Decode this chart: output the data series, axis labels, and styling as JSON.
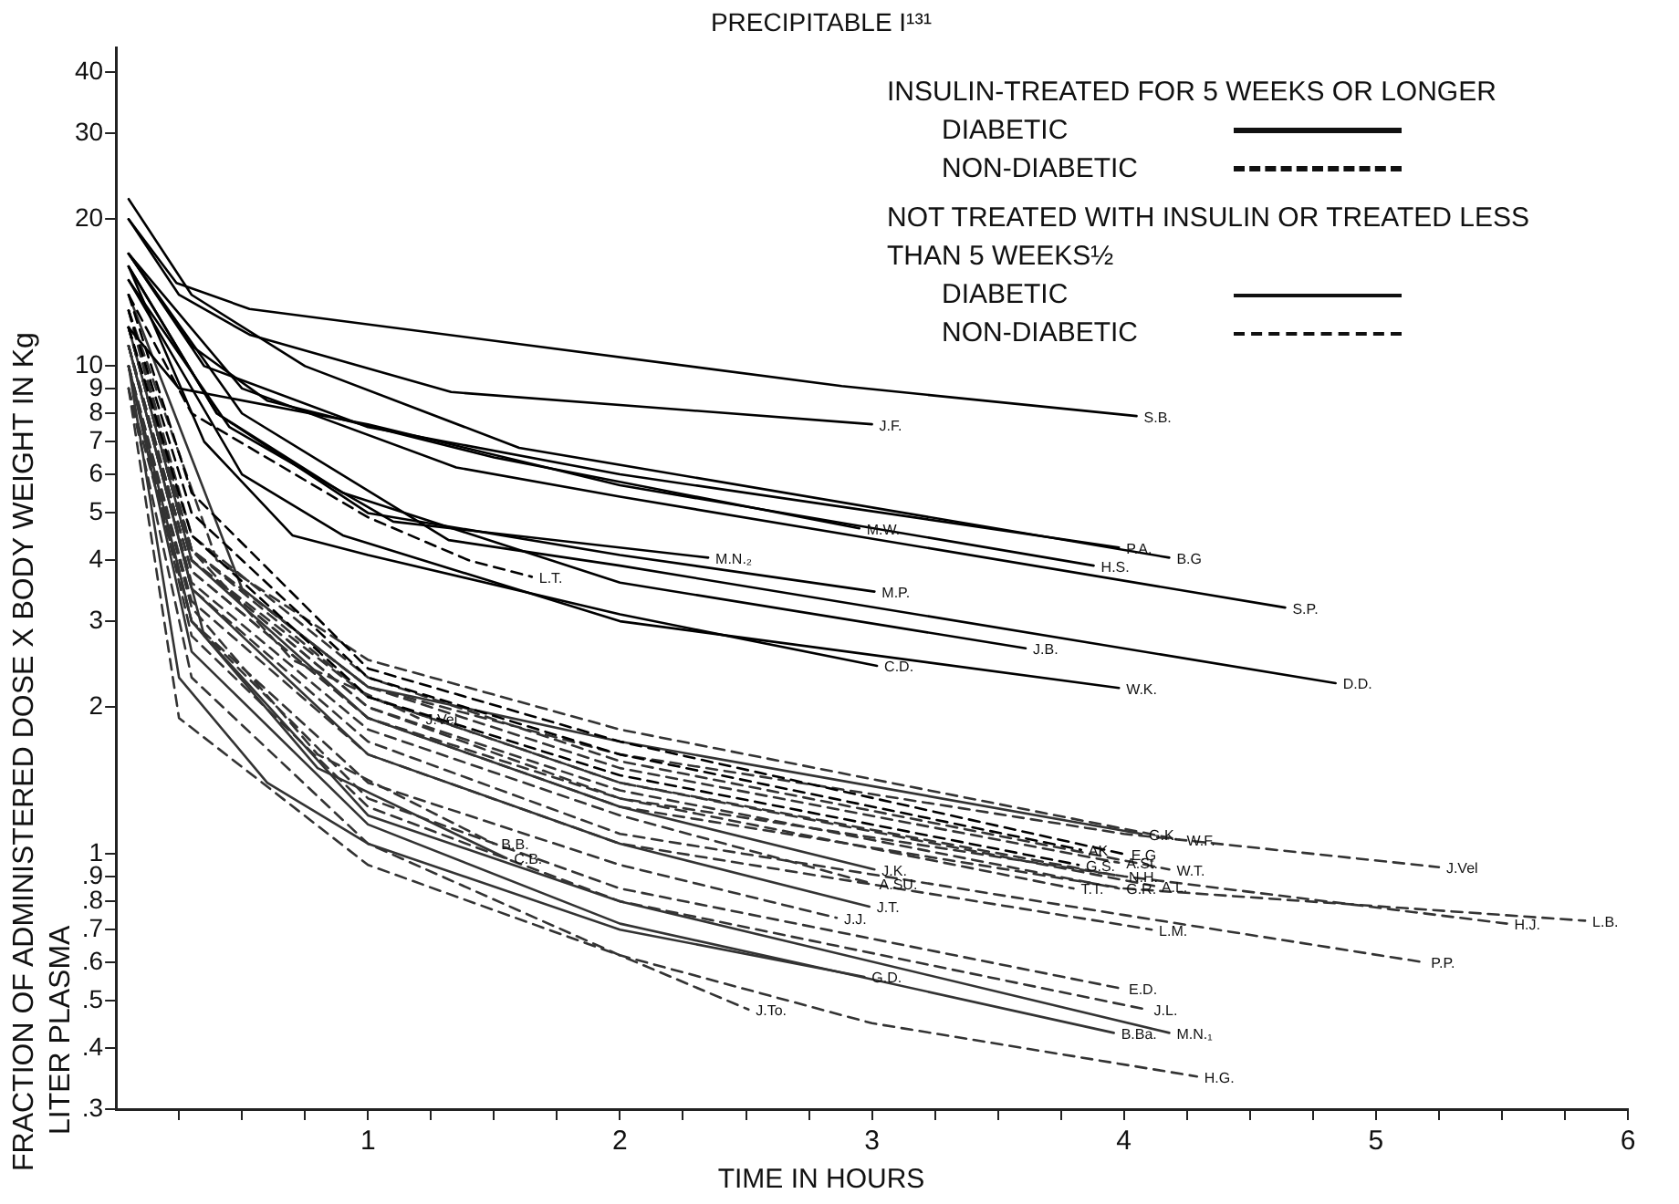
{
  "chart_data": {
    "type": "line",
    "title": "PRECIPITABLE I¹³¹",
    "xlabel": "TIME IN HOURS",
    "ylabel": "FRACTION OF ADMINISTERED DOSE X BODY WEIGHT IN Kg",
    "log": "y",
    "grid": false,
    "marker": "none",
    "xlim": [
      0,
      6
    ],
    "xticks": [
      {
        "value": 0.25,
        "label": null
      },
      {
        "value": 0.5,
        "label": null
      },
      {
        "value": 0.75,
        "label": null
      },
      1,
      {
        "value": 1.25,
        "label": null
      },
      {
        "value": 1.5,
        "label": null
      },
      {
        "value": 1.75,
        "label": null
      },
      2,
      {
        "value": 2.25,
        "label": null
      },
      {
        "value": 2.5,
        "label": null
      },
      {
        "value": 2.75,
        "label": null
      },
      3,
      {
        "value": 3.25,
        "label": null
      },
      {
        "value": 3.5,
        "label": null
      },
      {
        "value": 3.75,
        "label": null
      },
      4,
      {
        "value": 4.25,
        "label": null
      },
      {
        "value": 4.5,
        "label": null
      },
      {
        "value": 4.75,
        "label": null
      },
      5,
      {
        "value": 5.25,
        "label": null
      },
      {
        "value": 5.5,
        "label": null
      },
      {
        "value": 5.75,
        "label": null
      },
      6
    ],
    "ylim": [
      0.3,
      45
    ],
    "yticks": [
      {
        "value": 0.3,
        "label": ".3"
      },
      {
        "value": 0.4,
        "label": ".4"
      },
      {
        "value": 0.5,
        "label": ".5"
      },
      {
        "value": 0.6,
        "label": ".6"
      },
      {
        "value": 0.7,
        "label": ".7"
      },
      {
        "value": 0.8,
        "label": ".8"
      },
      {
        "value": 0.9,
        "label": ".9"
      },
      1,
      2,
      3,
      4,
      5,
      6,
      7,
      8,
      9,
      10,
      20,
      30,
      40
    ],
    "series": [
      {
        "name": "S.B.",
        "color": "#000000",
        "line_style": "solid",
        "x": [
          0.05,
          0.24,
          0.53,
          2.88,
          4.05
        ],
        "values": [
          20,
          14.8,
          13.1,
          9.1,
          7.9
        ]
      },
      {
        "name": "J.F.",
        "color": "#000000",
        "line_style": "solid",
        "x": [
          0.05,
          0.25,
          0.53,
          1.33,
          3.0
        ],
        "values": [
          20,
          14,
          11.6,
          8.85,
          7.6
        ]
      },
      {
        "name": "M.W.",
        "color": "#000000",
        "line_style": "solid",
        "x": [
          0.05,
          0.3,
          0.6,
          1.5,
          2.95
        ],
        "values": [
          17,
          11,
          8.5,
          6.5,
          4.65
        ]
      },
      {
        "name": "P.A.",
        "color": "#000000",
        "line_style": "solid",
        "x": [
          0.05,
          0.35,
          1.0,
          2.0,
          3.98
        ],
        "values": [
          17,
          10,
          7.5,
          6.0,
          4.25
        ]
      },
      {
        "name": "B.G",
        "color": "#000000",
        "line_style": "solid",
        "x": [
          0.05,
          0.3,
          0.75,
          1.6,
          4.18
        ],
        "values": [
          22,
          14,
          10,
          6.8,
          4.05
        ]
      },
      {
        "name": "H.S.",
        "color": "#000000",
        "line_style": "solid",
        "x": [
          0.05,
          0.25,
          1.0,
          2.0,
          3.88
        ],
        "values": [
          12,
          9,
          7.6,
          5.7,
          3.9
        ]
      },
      {
        "name": "S.P.",
        "color": "#000000",
        "line_style": "solid",
        "x": [
          0.05,
          0.5,
          1.35,
          2.0,
          4.64
        ],
        "values": [
          17,
          9,
          6.2,
          5.4,
          3.2
        ]
      },
      {
        "name": "M.N.₂",
        "color": "#000000",
        "line_style": "solid",
        "x": [
          0.05,
          0.45,
          1.1,
          2.35
        ],
        "values": [
          15,
          7.5,
          4.8,
          4.05
        ]
      },
      {
        "name": "M.P.",
        "color": "#000000",
        "line_style": "solid",
        "x": [
          0.05,
          0.4,
          1.0,
          2.0,
          3.01
        ],
        "values": [
          16,
          8,
          5,
          4.1,
          3.45
        ]
      },
      {
        "name": "C.D.",
        "color": "#000000",
        "line_style": "solid",
        "x": [
          0.05,
          0.35,
          0.7,
          1.0,
          2.0,
          3.02
        ],
        "values": [
          16,
          7,
          4.5,
          4.1,
          3.1,
          2.43
        ]
      },
      {
        "name": "W.K.",
        "color": "#000000",
        "line_style": "solid",
        "x": [
          0.05,
          0.5,
          0.9,
          2.0,
          3.98
        ],
        "values": [
          15,
          6,
          4.5,
          3.0,
          2.19
        ]
      },
      {
        "name": "J.B.",
        "color": "#000000",
        "line_style": "solid",
        "x": [
          0.05,
          0.4,
          0.9,
          2.0,
          3.61
        ],
        "values": [
          16,
          8,
          5.5,
          3.6,
          2.64
        ]
      },
      {
        "name": "D.D.",
        "color": "#000000",
        "line_style": "solid",
        "x": [
          0.05,
          0.5,
          1.32,
          2.0,
          4.84
        ],
        "values": [
          17,
          8,
          4.4,
          3.9,
          2.24
        ]
      },
      {
        "name": "L.T.",
        "color": "#000000",
        "line_style": "dashed",
        "x": [
          0.05,
          0.3,
          1.0,
          1.4,
          1.65
        ],
        "values": [
          14,
          8,
          4.9,
          4.0,
          3.7
        ]
      },
      {
        "name": "AK",
        "color": "#000000",
        "line_style": "dashed",
        "x": [
          0.05,
          0.3,
          1,
          2,
          3.83
        ],
        "values": [
          13,
          5,
          2.3,
          1.6,
          1.02
        ]
      },
      {
        "name": "E.G",
        "color": "#000000",
        "line_style": "dashed",
        "x": [
          0.05,
          0.3,
          1,
          2,
          4.0
        ],
        "values": [
          14,
          5.5,
          2.4,
          1.7,
          1.0
        ]
      },
      {
        "name": "G.S.",
        "color": "#000000",
        "line_style": "dashed",
        "x": [
          0.05,
          0.3,
          1,
          2,
          3.82
        ],
        "values": [
          12,
          4.5,
          2.1,
          1.45,
          0.95
        ]
      },
      {
        "name": "G.K.",
        "color": "#333333",
        "line_style": "solid",
        "x": [
          0.05,
          0.5,
          1,
          2,
          4.07
        ],
        "values": [
          14,
          3.5,
          2.2,
          1.7,
          1.1
        ]
      },
      {
        "name": "J.K.",
        "color": "#333333",
        "line_style": "solid",
        "x": [
          0.05,
          0.3,
          1,
          2,
          3.01
        ],
        "values": [
          12,
          4,
          1.9,
          1.25,
          0.93
        ]
      },
      {
        "name": "J.T.",
        "color": "#333333",
        "line_style": "solid",
        "x": [
          0.05,
          0.3,
          1,
          2,
          2.99
        ],
        "values": [
          11,
          3.5,
          1.6,
          1.05,
          0.78
        ]
      },
      {
        "name": "G.D.",
        "color": "#333333",
        "line_style": "solid",
        "x": [
          0.05,
          0.25,
          0.6,
          1,
          2,
          2.97
        ],
        "values": [
          10,
          2.3,
          1.4,
          1.05,
          0.7,
          0.56
        ]
      },
      {
        "name": "B.Ba.",
        "color": "#333333",
        "line_style": "solid",
        "x": [
          0.05,
          0.3,
          1,
          2,
          3.96
        ],
        "values": [
          10,
          2.6,
          1.15,
          0.72,
          0.43
        ]
      },
      {
        "name": "M.N.₁",
        "color": "#333333",
        "line_style": "solid",
        "x": [
          0.05,
          0.35,
          1,
          2,
          4.18
        ],
        "values": [
          11,
          2.8,
          1.2,
          0.8,
          0.43
        ]
      },
      {
        "name": "C.B.",
        "color": "#333333",
        "line_style": "solid",
        "x": [
          0.05,
          0.3,
          0.8,
          1.55
        ],
        "values": [
          10,
          3,
          1.5,
          0.98
        ]
      },
      {
        "name": "W.F.",
        "color": "#333333",
        "line_style": "dashed",
        "x": [
          0.05,
          0.4,
          1,
          2,
          4.22
        ],
        "values": [
          13,
          4,
          2.5,
          1.8,
          1.07
        ]
      },
      {
        "name": "J.Vel",
        "color": "#333333",
        "line_style": "dashed",
        "x": [
          0.05,
          0.3,
          1,
          2,
          4,
          5.25
        ],
        "values": [
          12,
          4.2,
          2.2,
          1.6,
          1.1,
          0.94
        ]
      },
      {
        "name": "A.St.",
        "color": "#333333",
        "line_style": "dashed",
        "x": [
          0.05,
          0.3,
          1,
          2,
          3.98
        ],
        "values": [
          12,
          4.2,
          2.2,
          1.5,
          0.96
        ]
      },
      {
        "name": "W.T.",
        "color": "#333333",
        "line_style": "dashed",
        "x": [
          0.05,
          0.3,
          1,
          2,
          4.18
        ],
        "values": [
          13,
          4.5,
          2.3,
          1.55,
          0.93
        ]
      },
      {
        "name": "N.H.",
        "color": "#333333",
        "line_style": "dashed",
        "x": [
          0.05,
          0.3,
          1,
          2,
          3.99
        ],
        "values": [
          12,
          4,
          2.1,
          1.4,
          0.9
        ]
      },
      {
        "name": "T.T.",
        "color": "#333333",
        "line_style": "dashed",
        "x": [
          0.05,
          0.3,
          1,
          2,
          3.8
        ],
        "values": [
          11,
          3.8,
          1.9,
          1.3,
          0.85
        ]
      },
      {
        "name": "G.R.",
        "color": "#333333",
        "line_style": "dashed",
        "x": [
          0.05,
          0.3,
          1,
          2,
          3.98
        ],
        "values": [
          12,
          4,
          2,
          1.35,
          0.85
        ]
      },
      {
        "name": "A.L.",
        "color": "#333333",
        "line_style": "dashed",
        "x": [
          0.05,
          0.3,
          1,
          2,
          4.12
        ],
        "values": [
          13,
          4.2,
          2.1,
          1.4,
          0.86
        ]
      },
      {
        "name": "H.J.",
        "color": "#333333",
        "line_style": "dashed",
        "x": [
          0.05,
          0.3,
          1,
          2,
          4,
          5.52
        ],
        "values": [
          12,
          4,
          2,
          1.3,
          0.9,
          0.72
        ]
      },
      {
        "name": "L.B.",
        "color": "#333333",
        "line_style": "dashed",
        "x": [
          0.05,
          0.3,
          1,
          2,
          4,
          5.83
        ],
        "values": [
          11,
          3.8,
          1.9,
          1.25,
          0.85,
          0.73
        ]
      },
      {
        "name": "P.P.",
        "color": "#333333",
        "line_style": "dashed",
        "x": [
          0.05,
          0.3,
          1,
          2,
          4,
          5.19
        ],
        "values": [
          11,
          3.5,
          1.7,
          1.1,
          0.75,
          0.6
        ]
      },
      {
        "name": "L.M.",
        "color": "#333333",
        "line_style": "dashed",
        "x": [
          0.05,
          0.3,
          1,
          2,
          4.11
        ],
        "values": [
          10,
          3.3,
          1.6,
          1.05,
          0.7
        ]
      },
      {
        "name": "A.SU.",
        "color": "#333333",
        "line_style": "dashed",
        "x": [
          0.05,
          0.3,
          1,
          2,
          3.0
        ],
        "values": [
          11,
          3.6,
          1.8,
          1.2,
          0.87
        ]
      },
      {
        "name": "J.J.",
        "color": "#333333",
        "line_style": "dashed",
        "x": [
          0.05,
          0.3,
          1,
          2,
          2.86
        ],
        "values": [
          9,
          3,
          1.4,
          0.95,
          0.74
        ]
      },
      {
        "name": "E.D.",
        "color": "#333333",
        "line_style": "dashed",
        "x": [
          0.05,
          0.3,
          1,
          2,
          3.99
        ],
        "values": [
          10,
          3,
          1.3,
          0.85,
          0.53
        ]
      },
      {
        "name": "J.L.",
        "color": "#333333",
        "line_style": "dashed",
        "x": [
          0.05,
          0.3,
          1,
          2,
          4.09
        ],
        "values": [
          10,
          2.8,
          1.25,
          0.8,
          0.48
        ]
      },
      {
        "name": "H.G.",
        "color": "#333333",
        "line_style": "dashed",
        "x": [
          0.05,
          0.25,
          1,
          2,
          3,
          4.29
        ],
        "values": [
          9,
          1.9,
          0.95,
          0.62,
          0.45,
          0.35
        ]
      },
      {
        "name": "J.To.",
        "color": "#333333",
        "line_style": "dashed",
        "x": [
          0.05,
          0.3,
          1,
          2,
          2.51
        ],
        "values": [
          9,
          2.3,
          1.05,
          0.62,
          0.48
        ]
      },
      {
        "name": "J.Vei",
        "color": "#333333",
        "line_style": "dashed",
        "x": [
          0.05,
          0.3,
          0.7,
          1.2
        ],
        "values": [
          12,
          4.2,
          2.5,
          1.9
        ]
      },
      {
        "name": "B.B.",
        "color": "#333333",
        "line_style": "dashed",
        "x": [
          0.05,
          0.3,
          0.8,
          1.5
        ],
        "values": [
          10,
          3.2,
          1.6,
          1.05
        ]
      }
    ],
    "annotations": [
      "INSULIN-TREATED FOR 5 WEEKS OR LONGER",
      "DIABETIC",
      "NON-DIABETIC",
      "NOT TREATED WITH INSULIN OR TREATED LESS THAN 5 WEEKS½",
      "DIABETIC",
      "NON-DIABETIC",
      "LITER PLASMA"
    ]
  }
}
